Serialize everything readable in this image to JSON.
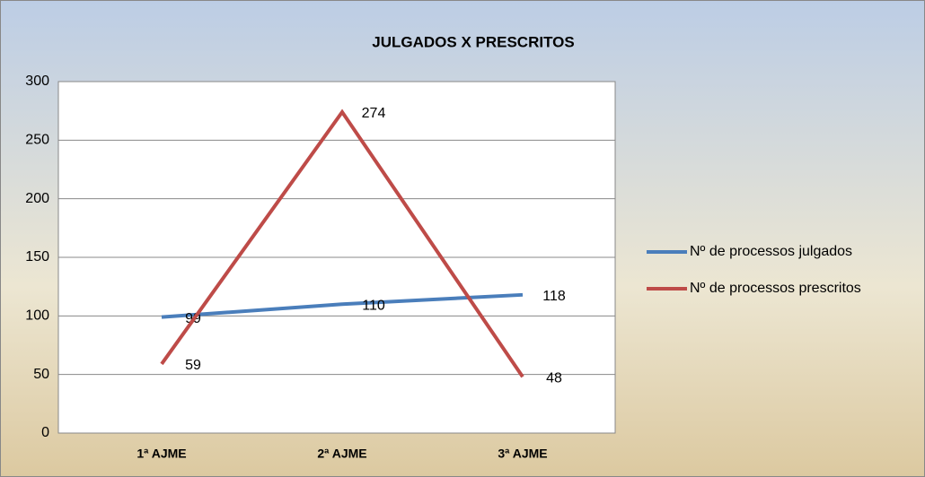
{
  "chart_data": {
    "type": "line",
    "title": "JULGADOS X PRESCRITOS",
    "categories": [
      "1ª AJME",
      "2ª AJME",
      "3ª AJME"
    ],
    "series": [
      {
        "name": "Nº de  processos julgados",
        "color": "#4a7ebb",
        "values": [
          99,
          110,
          118
        ]
      },
      {
        "name": "Nº  de processos prescritos",
        "color": "#be4b48",
        "values": [
          59,
          274,
          48
        ]
      }
    ],
    "ylim": [
      0,
      300
    ],
    "yticks": [
      0,
      50,
      100,
      150,
      200,
      250,
      300
    ],
    "grid": true,
    "legend": "right"
  }
}
